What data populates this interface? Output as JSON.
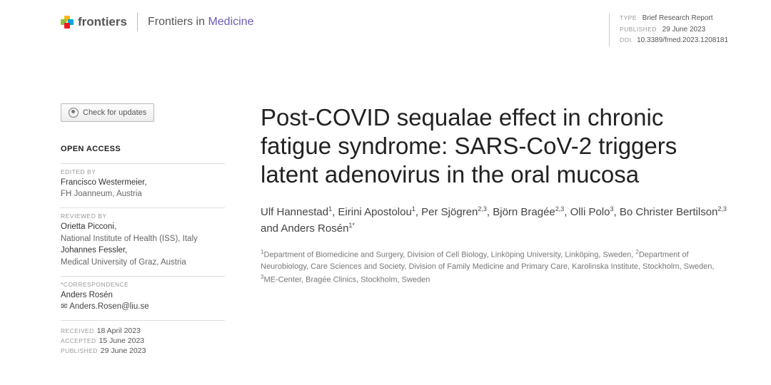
{
  "header": {
    "brand": "frontiers",
    "journal_prefix": "Frontiers in ",
    "journal_accent": "Medicine",
    "meta": {
      "type_label": "TYPE",
      "type_value": "Brief Research Report",
      "published_label": "PUBLISHED",
      "published_value": "29 June 2023",
      "doi_label": "DOI",
      "doi_value": "10.3389/fmed.2023.1208181"
    }
  },
  "sidebar": {
    "check_updates": "Check for updates",
    "open_access": "OPEN ACCESS",
    "edited_label": "EDITED BY",
    "editor_name": "Francisco Westermeier,",
    "editor_affil": "FH Joanneum, Austria",
    "reviewed_label": "REVIEWED BY",
    "reviewer1_name": "Orietta Picconi,",
    "reviewer1_affil": "National Institute of Health (ISS), Italy",
    "reviewer2_name": "Johannes Fessler,",
    "reviewer2_affil": "Medical University of Graz, Austria",
    "corr_label": "*CORRESPONDENCE",
    "corr_name": "Anders Rosén",
    "corr_email": "Anders.Rosen@liu.se",
    "received_label": "RECEIVED",
    "received_value": "18 April 2023",
    "accepted_label": "ACCEPTED",
    "accepted_value": "15 June 2023",
    "published_label": "PUBLISHED",
    "published_value": "29 June 2023"
  },
  "article": {
    "title": "Post-COVID sequalae effect in chronic fatigue syndrome: SARS-CoV-2 triggers latent adenovirus in the oral mucosa",
    "authors_html": "Ulf Hannestad<sup>1</sup>, Eirini Apostolou<sup>1</sup>, Per Sjögren<sup>2,3</sup>, Björn Bragée<sup>2,3</sup>, Olli Polo<sup>3</sup>, Bo Christer Bertilson<sup>2,3</sup> and Anders Rosén<sup>1*</sup>",
    "affiliations_html": "<sup>1</sup>Department of Biomedicine and Surgery, Division of Cell Biology, Linköping University, Linköping, Sweden, <sup>2</sup>Department of Neurobiology, Care Sciences and Society, Division of Family Medicine and Primary Care, Karolinska Institute, Stockholm, Sweden, <sup>3</sup>ME-Center, Bragée Clinics, Stockholm, Sweden"
  },
  "colors": {
    "accent": "#6d5bb0",
    "text": "#333333",
    "muted": "#999999"
  }
}
